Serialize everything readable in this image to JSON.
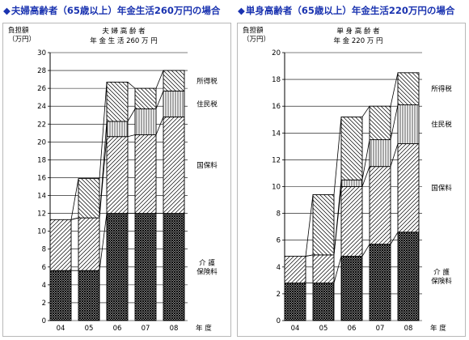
{
  "panels": [
    {
      "title": "夫婦高齢者（65歳以上）年金生活260万円の場合",
      "title_mark": "◆",
      "chart_data": {
        "type": "bar",
        "stacked": true,
        "ylabel_lines": [
          "負担額",
          "（万円）"
        ],
        "subtitle_lines": [
          "夫 婦 高 齢 者",
          "年 金 生 活 260 万 円"
        ],
        "xlabel": "年 度",
        "categories": [
          "04",
          "05",
          "06",
          "07",
          "08"
        ],
        "ylim": [
          0,
          30
        ],
        "yticks": [
          0,
          2,
          4,
          6,
          8,
          10,
          12,
          14,
          16,
          18,
          20,
          22,
          24,
          26,
          28,
          30
        ],
        "grid": true,
        "series": [
          {
            "name": "介護保険料",
            "label_lines": [
              "介 護",
              "保険料"
            ],
            "pattern": "dense",
            "values": [
              5.6,
              5.6,
              12.0,
              12.0,
              12.0
            ]
          },
          {
            "name": "国保料",
            "label_lines": [
              "国保料"
            ],
            "pattern": "diag",
            "values": [
              5.7,
              5.9,
              8.6,
              8.8,
              10.8
            ]
          },
          {
            "name": "住民税",
            "label_lines": [
              "住民税"
            ],
            "pattern": "vert",
            "values": [
              0,
              0,
              1.7,
              2.9,
              2.9
            ]
          },
          {
            "name": "所得税",
            "label_lines": [
              "所得税"
            ],
            "pattern": "back",
            "values": [
              0,
              4.4,
              4.4,
              2.3,
              2.3
            ]
          }
        ]
      }
    },
    {
      "title": "単身高齢者（65歳以上）年金生活220万円の場合",
      "title_mark": "◆",
      "chart_data": {
        "type": "bar",
        "stacked": true,
        "ylabel_lines": [
          "負担額",
          "（万円）"
        ],
        "subtitle_lines": [
          "単 身 高 齢 者",
          "年 金 220 万 円"
        ],
        "xlabel": "年 度",
        "categories": [
          "04",
          "05",
          "06",
          "07",
          "08"
        ],
        "ylim": [
          0,
          20
        ],
        "yticks": [
          0,
          2,
          4,
          6,
          8,
          10,
          12,
          14,
          16,
          18,
          20
        ],
        "grid": true,
        "series": [
          {
            "name": "介護保険料",
            "label_lines": [
              "介 護",
              "保険料"
            ],
            "pattern": "dense",
            "values": [
              2.8,
              2.8,
              4.8,
              5.7,
              6.6
            ]
          },
          {
            "name": "国保料",
            "label_lines": [
              "国保料"
            ],
            "pattern": "diag",
            "values": [
              2.0,
              2.1,
              5.2,
              5.8,
              6.6
            ]
          },
          {
            "name": "住民税",
            "label_lines": [
              "住民税"
            ],
            "pattern": "vert",
            "values": [
              0,
              0,
              0.5,
              2.0,
              2.9
            ]
          },
          {
            "name": "所得税",
            "label_lines": [
              "所得税"
            ],
            "pattern": "back",
            "values": [
              0,
              4.5,
              4.7,
              2.5,
              2.4
            ]
          }
        ]
      }
    }
  ]
}
